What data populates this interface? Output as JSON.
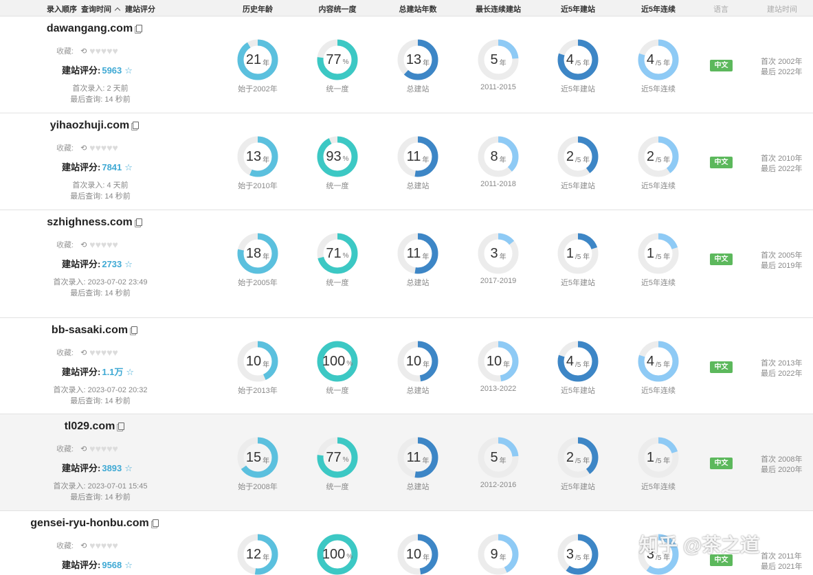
{
  "header": {
    "col_order": "录入顺序",
    "col_query": "查询时间",
    "sort_icon": "chevron-up-icon",
    "col_score": "建站评分",
    "col_age": "历史年龄",
    "col_consistency": "内容统一度",
    "col_total": "总建站年数",
    "col_longest": "最长连续建站",
    "col_recent5": "近5年建站",
    "col_recent5c": "近5年连续",
    "col_lang": "语言",
    "col_buildtime": "建站时间"
  },
  "colors": {
    "age": "#5bc0de",
    "consistency": "#3cc8c4",
    "total": "#3d86c6",
    "longest": "#8ecaf5",
    "recent5": "#3d86c6",
    "recent5c": "#8ecaf5",
    "track": "#ececec",
    "lang_badge": "#5cb85c",
    "score": "#3fa9d4"
  },
  "labels": {
    "fav": "收藏:",
    "score": "建站评分:",
    "first_rec": "首次录入:",
    "last_query": "最后查询:",
    "unit_year": "年",
    "unit_pct": "%",
    "unit_5y": "/5 年",
    "cap_consistency": "统一度",
    "cap_total": "总建站",
    "cap_recent5": "近5年建站",
    "cap_recent5c": "近5年连续",
    "first_prefix": "首次",
    "last_prefix": "最后"
  },
  "rows": [
    {
      "domain": "dawangang.com",
      "score": "5963",
      "first": "2 天前",
      "last": "14 秒前",
      "age": 21,
      "age_cap": "始于2002年",
      "consistency": 77,
      "total": 13,
      "longest": 5,
      "longest_cap": "2011-2015",
      "recent5": 4,
      "recent5c": 4,
      "lang": "中文",
      "build_first": "2002年",
      "build_last": "2022年"
    },
    {
      "domain": "yihaozhuji.com",
      "score": "7841",
      "first": "4 天前",
      "last": "14 秒前",
      "age": 13,
      "age_cap": "始于2010年",
      "consistency": 93,
      "total": 11,
      "longest": 8,
      "longest_cap": "2011-2018",
      "recent5": 2,
      "recent5c": 2,
      "lang": "中文",
      "build_first": "2010年",
      "build_last": "2022年"
    },
    {
      "domain": "szhighness.com",
      "score": "2733",
      "first": "2023-07-02 23:49",
      "last": "14 秒前",
      "age": 18,
      "age_cap": "始于2005年",
      "consistency": 71,
      "total": 11,
      "longest": 3,
      "longest_cap": "2017-2019",
      "recent5": 1,
      "recent5c": 1,
      "lang": "中文",
      "build_first": "2005年",
      "build_last": "2019年"
    },
    {
      "domain": "bb-sasaki.com",
      "score": "1.1万",
      "first": "2023-07-02 20:32",
      "last": "14 秒前",
      "age": 10,
      "age_cap": "始于2013年",
      "consistency": 100,
      "total": 10,
      "longest": 10,
      "longest_cap": "2013-2022",
      "recent5": 4,
      "recent5c": 4,
      "lang": "中文",
      "build_first": "2013年",
      "build_last": "2022年"
    },
    {
      "domain": "tl029.com",
      "score": "3893",
      "first": "2023-07-01 15:45",
      "last": "14 秒前",
      "age": 15,
      "age_cap": "始于2008年",
      "consistency": 77,
      "total": 11,
      "longest": 5,
      "longest_cap": "2012-2016",
      "recent5": 2,
      "recent5c": 1,
      "lang": "中文",
      "build_first": "2008年",
      "build_last": "2020年"
    },
    {
      "domain": "gensei-ryu-honbu.com",
      "score": "9568",
      "first": "",
      "last": "",
      "age": 12,
      "age_cap": "",
      "consistency": 100,
      "total": 10,
      "longest": 9,
      "longest_cap": "",
      "recent5": 3,
      "recent5c": 3,
      "lang": "中文",
      "build_first": "2011年",
      "build_last": "2021年"
    }
  ],
  "watermark": "知乎 @茶之道"
}
